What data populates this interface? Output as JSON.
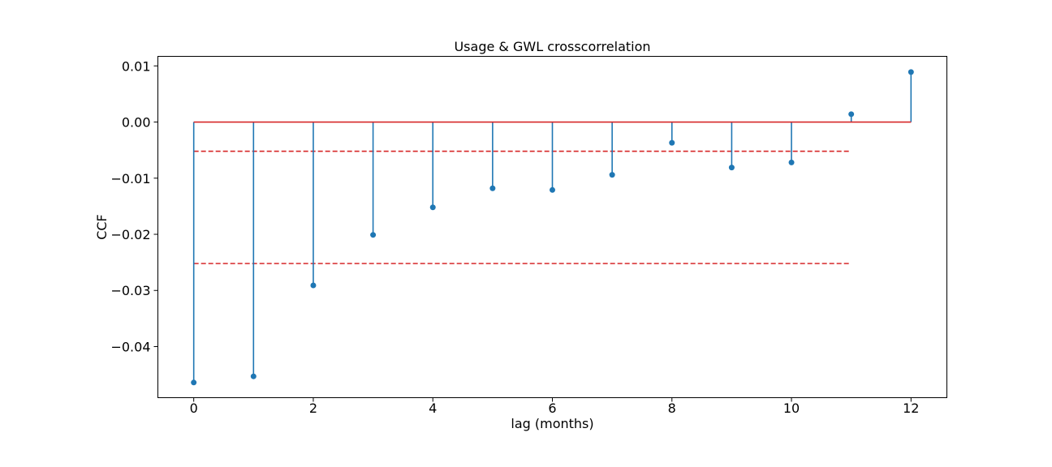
{
  "chart_data": {
    "type": "stem",
    "title": "Usage & GWL crosscorrelation",
    "xlabel": "lag (months)",
    "ylabel": "CCF",
    "xlim": [
      -0.6,
      12.6
    ],
    "ylim": [
      -0.0491,
      0.0117
    ],
    "x_ticks": [
      0,
      2,
      4,
      6,
      8,
      10,
      12
    ],
    "y_ticks": [
      0.01,
      0.0,
      -0.01,
      -0.02,
      -0.03,
      -0.04
    ],
    "y_tick_labels": [
      "0.01",
      "0.00",
      "−0.01",
      "−0.02",
      "−0.03",
      "−0.04"
    ],
    "baseline": {
      "value": 0.0,
      "x_range": [
        0,
        12
      ],
      "color": "#d62728"
    },
    "stems": {
      "color": "#1f77b4",
      "x": [
        0,
        1,
        2,
        3,
        4,
        5,
        6,
        7,
        8,
        9,
        10,
        11,
        12
      ],
      "y": [
        -0.0464,
        -0.0453,
        -0.0291,
        -0.0201,
        -0.0152,
        -0.0118,
        -0.0121,
        -0.0094,
        -0.0037,
        -0.0081,
        -0.0072,
        0.0014,
        0.0089
      ]
    },
    "confidence_lines": {
      "color": "#d62728",
      "style": "dashed",
      "x_range": [
        0,
        11
      ],
      "values": [
        -0.0052,
        -0.0252
      ]
    },
    "grid": false
  }
}
